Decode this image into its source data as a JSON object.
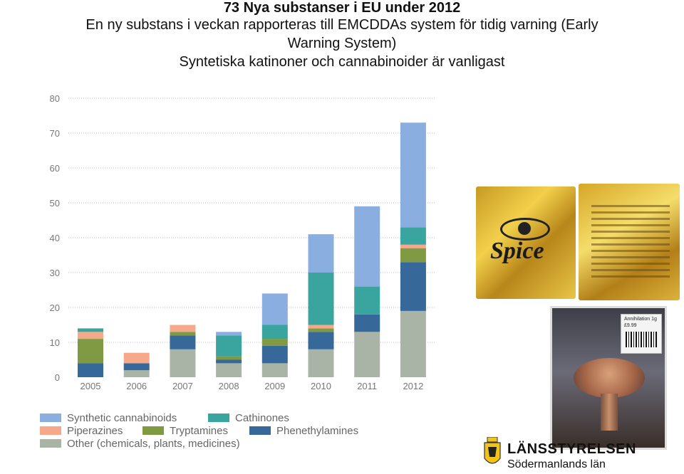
{
  "header": {
    "line1": "73 Nya substanser i EU under 2012",
    "line2": "En ny substans i veckan rapporteras till EMCDDAs system för tidig varning (Early",
    "line3": "Warning System)",
    "line4": "Syntetiska katinoner och cannabinoider är vanligast"
  },
  "chart_data": {
    "type": "bar",
    "stacked": true,
    "categories": [
      "2005",
      "2006",
      "2007",
      "2008",
      "2009",
      "2010",
      "2011",
      "2012"
    ],
    "ylim": [
      0,
      80
    ],
    "yticks": [
      "0",
      "10",
      "20",
      "30",
      "40",
      "50",
      "60",
      "70",
      "80"
    ],
    "grid": true,
    "legend_position": "bottom",
    "series": [
      {
        "name": "Other (chemicals, plants, medicines)",
        "color": "#a9b4a6",
        "values": [
          0,
          2,
          8,
          4,
          4,
          8,
          13,
          19
        ]
      },
      {
        "name": "Phenethylamines",
        "color": "#36689a",
        "values": [
          4,
          2,
          4,
          1,
          5,
          5,
          5,
          14
        ]
      },
      {
        "name": "Tryptamines",
        "color": "#7f9a43",
        "values": [
          7,
          0,
          1,
          1,
          2,
          1,
          0,
          4
        ]
      },
      {
        "name": "Piperazines",
        "color": "#f5a98a",
        "values": [
          2,
          3,
          2,
          0,
          0,
          1,
          0,
          1
        ]
      },
      {
        "name": "Cathinones",
        "color": "#3aa59f",
        "values": [
          1,
          0,
          0,
          6,
          4,
          15,
          8,
          5
        ]
      },
      {
        "name": "Synthetic cannabinoids",
        "color": "#8aaee0",
        "values": [
          0,
          0,
          0,
          1,
          9,
          11,
          23,
          30
        ]
      }
    ]
  },
  "legend": {
    "row1": [
      {
        "label": "Synthetic cannabinoids",
        "color": "#8aaee0"
      },
      {
        "label": "Cathinones",
        "color": "#3aa59f"
      }
    ],
    "row2": [
      {
        "label": "Piperazines",
        "color": "#f5a98a"
      },
      {
        "label": "Tryptamines",
        "color": "#7f9a43"
      },
      {
        "label": "Phenethylamines",
        "color": "#36689a"
      }
    ],
    "row3": [
      {
        "label": "Other (chemicals, plants, medicines)",
        "color": "#a9b4a6"
      }
    ]
  },
  "photos": {
    "spice_pack_text": "Spice",
    "annihilation_label": "Annihilation 1g",
    "annihilation_price": "£9.99"
  },
  "logo": {
    "line1": "LÄNSSTYRELSEN",
    "line2": "Södermanlands län"
  }
}
